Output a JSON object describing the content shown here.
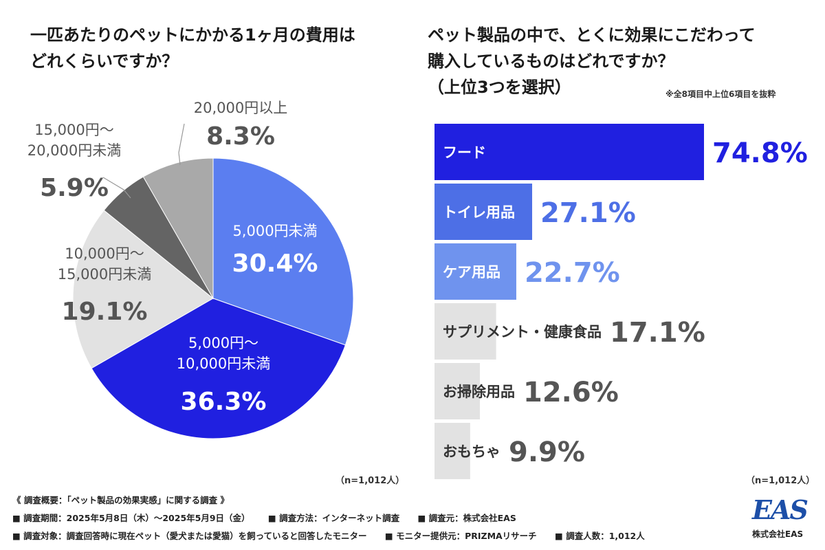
{
  "pie": {
    "title_line1": "一匹あたりのペットにかかる1ヶ月の費用は",
    "title_line2": "どれくらいですか？",
    "n_label": "（n=1,012人）"
  },
  "bars": {
    "title_line1": "ペット製品の中で、とくに効果にこだわって",
    "title_line2": "購入しているものはどれですか？",
    "title_line3": "（上位3つを選択）",
    "note": "※全8項目中上位6項目を抜粋",
    "n_label": "（n=1,012人）"
  },
  "footer": {
    "line1": "《 調査概要：「ペット製品の効果実感」に関する調査 》",
    "period": "■ 調査期間：2025年5月8日（木）〜2025年5月9日（金）",
    "method": "■ 調査方法：インターネット調査",
    "org": "■ 調査元：株式会社EAS",
    "target": "■ 調査対象：調査回答時に現在ペット（愛犬または愛猫）を飼っていると回答したモニター",
    "provider": "■ モニター提供元：PRIZMAリサーチ",
    "count": "■ 調査人数：1,012人"
  },
  "logo": {
    "mark": "EAS",
    "company": "株式会社EAS"
  },
  "chart_data": [
    {
      "type": "pie",
      "title": "一匹あたりのペットにかかる1ヶ月の費用はどれくらいですか？",
      "slices": [
        {
          "label_lines": [
            "5,000円未満"
          ],
          "value": 30.4,
          "value_text": "30.4%",
          "color": "#5b7ef0",
          "text_color": "#ffffff"
        },
        {
          "label_lines": [
            "5,000円〜",
            "10,000円未満"
          ],
          "value": 36.3,
          "value_text": "36.3%",
          "color": "#2020e0",
          "text_color": "#ffffff"
        },
        {
          "label_lines": [
            "10,000円〜",
            "15,000円未満"
          ],
          "value": 19.1,
          "value_text": "19.1%",
          "color": "#e2e2e2",
          "text_color": "#555555"
        },
        {
          "label_lines": [
            "15,000円〜",
            "20,000円未満"
          ],
          "value": 5.9,
          "value_text": "5.9%",
          "color": "#646464",
          "text_color": "#555555"
        },
        {
          "label_lines": [
            "20,000円以上"
          ],
          "value": 8.3,
          "value_text": "8.3%",
          "color": "#a9a9a9",
          "text_color": "#555555"
        }
      ]
    },
    {
      "type": "bar",
      "orientation": "horizontal",
      "title": "ペット製品の中で、とくに効果にこだわって購入しているものはどれですか？（上位3つを選択）",
      "categories": [
        "フード",
        "トイレ用品",
        "ケア用品",
        "サプリメント・健康食品",
        "お掃除用品",
        "おもちゃ"
      ],
      "values": [
        74.8,
        27.1,
        22.7,
        17.1,
        12.6,
        9.9
      ],
      "value_texts": [
        "74.8%",
        "27.1%",
        "22.7%",
        "17.1%",
        "12.6%",
        "9.9%"
      ],
      "bar_colors": [
        "#2020e0",
        "#4d6fe6",
        "#6f93ee",
        "#e2e2e2",
        "#e2e2e2",
        "#e2e2e2"
      ],
      "label_colors": [
        "#ffffff",
        "#ffffff",
        "#ffffff",
        "#333333",
        "#333333",
        "#333333"
      ],
      "value_colors": [
        "#2020e0",
        "#4d6fe6",
        "#6f93ee",
        "#555555",
        "#555555",
        "#555555"
      ]
    }
  ]
}
